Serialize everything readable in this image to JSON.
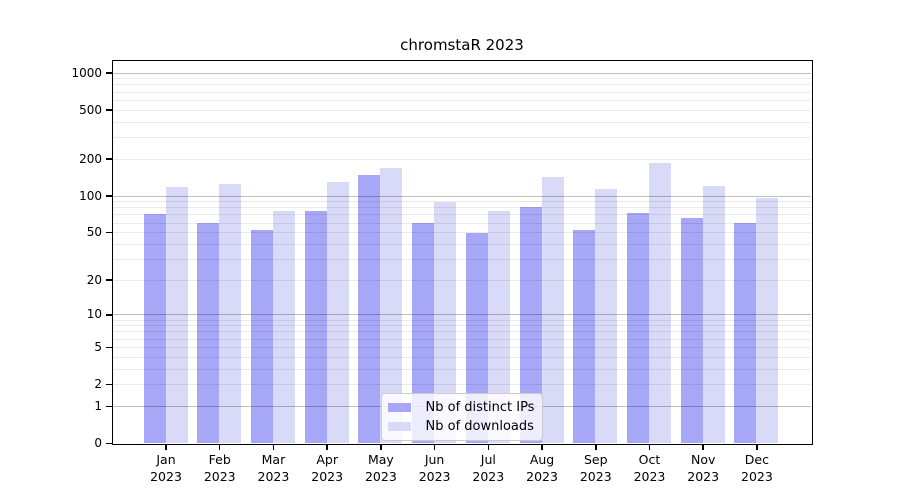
{
  "title": "chromstaR 2023",
  "chart_data": {
    "type": "bar",
    "title": "chromstaR 2023",
    "categories": [
      "Jan",
      "Feb",
      "Mar",
      "Apr",
      "May",
      "Jun",
      "Jul",
      "Aug",
      "Sep",
      "Oct",
      "Nov",
      "Dec"
    ],
    "year": "2023",
    "series": [
      {
        "name": "Nb of distinct IPs",
        "color": "#a7a7f7",
        "values": [
          70,
          60,
          52,
          75,
          147,
          60,
          49,
          81,
          52,
          72,
          66,
          60
        ]
      },
      {
        "name": "Nb of downloads",
        "color": "#d9d9f8",
        "values": [
          118,
          124,
          75,
          128,
          167,
          88,
          74,
          141,
          112,
          185,
          119,
          96
        ]
      }
    ],
    "y_scale": "log10(value+1)",
    "y_ticks": [
      1000,
      500,
      200,
      100,
      50,
      20,
      10,
      5,
      2,
      1,
      0
    ],
    "ylim": [
      0,
      1250
    ],
    "grid": true,
    "legend_position": "bottom-center",
    "colors": {
      "axis": "#000000",
      "grid_major": "rgba(0,0,0,0.25)",
      "grid_minor": "rgba(0,0,0,0.08)",
      "background": "#ffffff"
    }
  }
}
